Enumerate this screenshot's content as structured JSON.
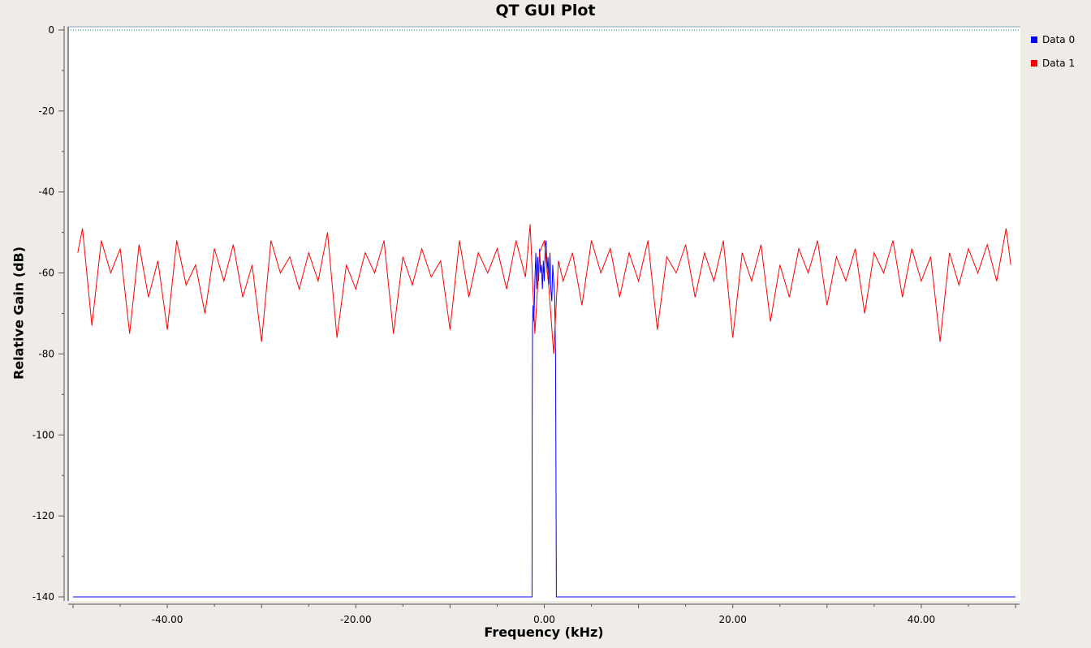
{
  "chart_data": {
    "type": "line",
    "title": "QT GUI Plot",
    "xlabel": "Frequency (kHz)",
    "ylabel": "Relative Gain (dB)",
    "xlim": [
      -50,
      50
    ],
    "ylim": [
      -140,
      0
    ],
    "x_ticks": [
      -40,
      -20,
      0,
      20,
      40
    ],
    "x_tick_labels": [
      "-40.00",
      "-20.00",
      "0.00",
      "20.00",
      "40.00"
    ],
    "y_ticks": [
      0,
      -20,
      -40,
      -60,
      -80,
      -100,
      -120,
      -140
    ],
    "y_tick_labels": [
      "0",
      "-20",
      "-40",
      "-60",
      "-80",
      "-100",
      "-120",
      "-140"
    ],
    "grid": false,
    "legend_position": "right",
    "reference_line": {
      "y": 0,
      "color": "#008b8b",
      "style": "dotted"
    },
    "series": [
      {
        "name": "Data 0",
        "color": "#0000ff",
        "x": [
          -50,
          -1.3,
          -1.28,
          -1.25,
          -1.2,
          -1.1,
          -1.0,
          -0.9,
          -0.8,
          -0.7,
          -0.6,
          -0.5,
          -0.4,
          -0.3,
          -0.2,
          -0.1,
          0.0,
          0.1,
          0.2,
          0.3,
          0.4,
          0.5,
          0.6,
          0.7,
          0.8,
          0.9,
          1.0,
          1.1,
          1.2,
          1.25,
          1.28,
          1.3,
          50
        ],
        "y": [
          -140,
          -140,
          -95,
          -74,
          -68,
          -72,
          -62,
          -55,
          -64,
          -56,
          -62,
          -54,
          -60,
          -58,
          -64,
          -57,
          -62,
          -53,
          -52,
          -60,
          -56,
          -63,
          -55,
          -64,
          -67,
          -58,
          -62,
          -66,
          -80,
          -115,
          -140,
          -140,
          -140
        ]
      },
      {
        "name": "Data 1",
        "color": "#ff0000",
        "x": [
          -49.5,
          -49,
          -48,
          -47,
          -46,
          -45,
          -44,
          -43,
          -42,
          -41,
          -40,
          -39,
          -38,
          -37,
          -36,
          -35,
          -34,
          -33,
          -32,
          -31,
          -30,
          -29,
          -28,
          -27,
          -26,
          -25,
          -24,
          -23,
          -22,
          -21,
          -20,
          -19,
          -18,
          -17,
          -16,
          -15,
          -14,
          -13,
          -12,
          -11,
          -10,
          -9,
          -8,
          -7,
          -6,
          -5,
          -4,
          -3,
          -2,
          -1.5,
          -1,
          -0.5,
          0,
          0.5,
          1,
          1.5,
          2,
          3,
          4,
          5,
          6,
          7,
          8,
          9,
          10,
          11,
          12,
          13,
          14,
          15,
          16,
          17,
          18,
          19,
          20,
          21,
          22,
          23,
          24,
          25,
          26,
          27,
          28,
          29,
          30,
          31,
          32,
          33,
          34,
          35,
          36,
          37,
          38,
          39,
          40,
          41,
          42,
          43,
          44,
          45,
          46,
          47,
          48,
          49,
          49.5
        ],
        "y": [
          -55,
          -49,
          -73,
          -52,
          -60,
          -54,
          -75,
          -53,
          -66,
          -57,
          -74,
          -52,
          -63,
          -58,
          -70,
          -54,
          -62,
          -53,
          -66,
          -58,
          -77,
          -52,
          -60,
          -56,
          -64,
          -55,
          -62,
          -50,
          -76,
          -58,
          -64,
          -55,
          -60,
          -52,
          -75,
          -56,
          -63,
          -54,
          -61,
          -57,
          -74,
          -52,
          -66,
          -55,
          -60,
          -54,
          -64,
          -52,
          -61,
          -48,
          -75,
          -55,
          -52,
          -64,
          -80,
          -57,
          -62,
          -55,
          -68,
          -52,
          -60,
          -54,
          -66,
          -55,
          -62,
          -52,
          -74,
          -56,
          -60,
          -53,
          -66,
          -55,
          -62,
          -52,
          -76,
          -55,
          -62,
          -53,
          -72,
          -58,
          -66,
          -54,
          -60,
          -52,
          -68,
          -56,
          -62,
          -54,
          -70,
          -55,
          -60,
          -52,
          -66,
          -54,
          -62,
          -56,
          -77,
          -55,
          -63,
          -54,
          -60,
          -53,
          -62,
          -49,
          -58
        ]
      }
    ]
  }
}
